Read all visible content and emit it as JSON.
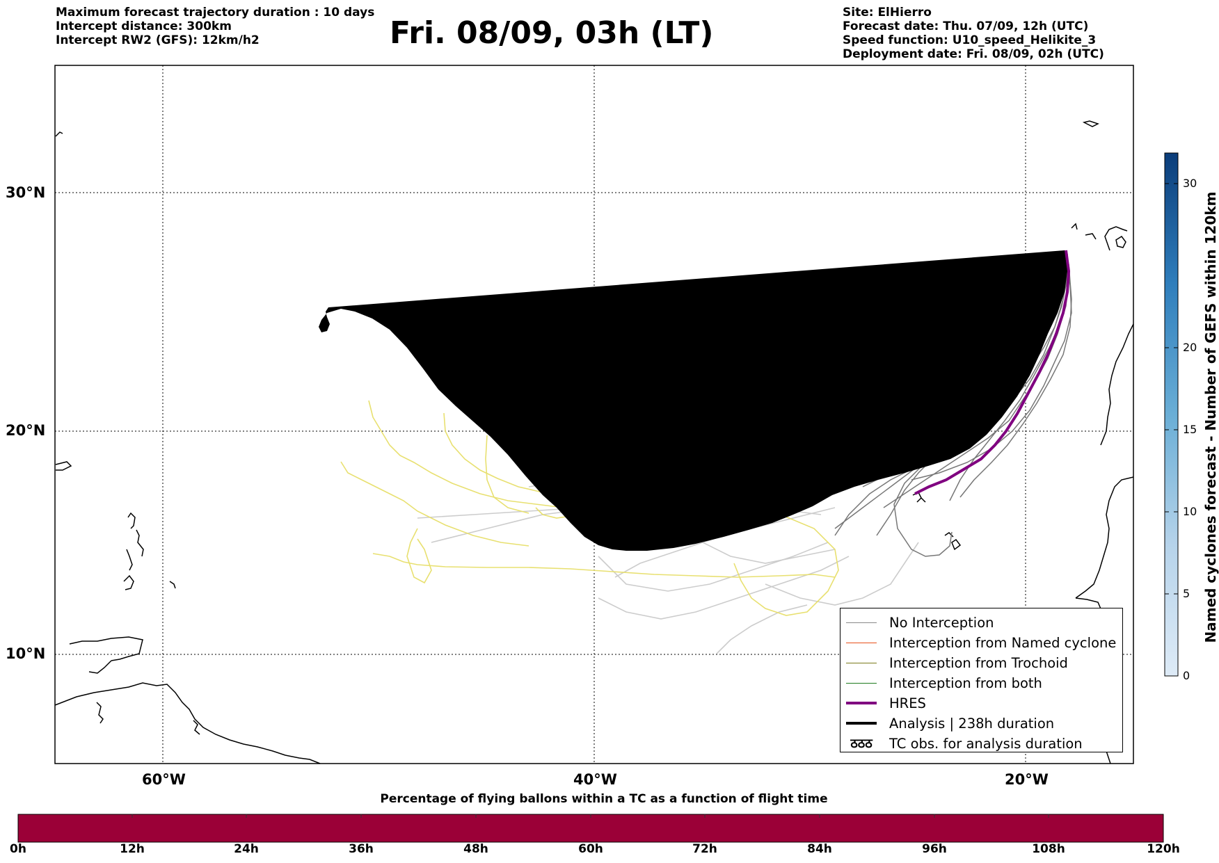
{
  "header_left": {
    "line1": "Maximum forecast trajectory duration : 10 days",
    "line2": "Intercept distance: 300km",
    "line3": "Intercept RW2 (GFS):  12km/h2"
  },
  "title": "Fri. 08/09, 03h (LT)",
  "header_right": {
    "line1": "Site: ElHierro",
    "line2": "Forecast date: Thu. 07/09, 12h (UTC)",
    "line3": "Speed function: U10_speed_Helikite_3",
    "line4": "Deployment date: Fri. 08/09, 02h (UTC)"
  },
  "map": {
    "lat_labels": [
      "30°N",
      "20°N",
      "10°N"
    ],
    "lon_labels": [
      "60°W",
      "40°W",
      "20°W"
    ],
    "colors": {
      "no_interception": "#888888",
      "named_cyclone": "#e8501a",
      "trochoid": "#7a7a1a",
      "both": "#1f7a1f",
      "hres": "#800080",
      "analysis": "#000000",
      "faint_track": "#cccccc",
      "trochoid_track": "#e8e070"
    }
  },
  "legend": {
    "items": [
      {
        "label": "No Interception"
      },
      {
        "label": "Interception from Named cyclone"
      },
      {
        "label": "Interception from Trochoid"
      },
      {
        "label": "Interception from both"
      },
      {
        "label": "HRES"
      },
      {
        "label": "Analysis | 238h duration"
      },
      {
        "label": "TC obs. for analysis duration",
        "symbol": "ठठठ"
      }
    ]
  },
  "colorbar_right": {
    "label": "Named cyclones forecast - Number of GEFS within 120km",
    "ticks": [
      "0",
      "5",
      "10",
      "15",
      "20",
      "30"
    ]
  },
  "colorbar_bottom": {
    "title": "Percentage of flying ballons within a TC as a function of flight time",
    "ticks": [
      "0h",
      "12h",
      "24h",
      "36h",
      "48h",
      "60h",
      "72h",
      "84h",
      "96h",
      "108h",
      "120h"
    ],
    "color": "#9b0037"
  }
}
